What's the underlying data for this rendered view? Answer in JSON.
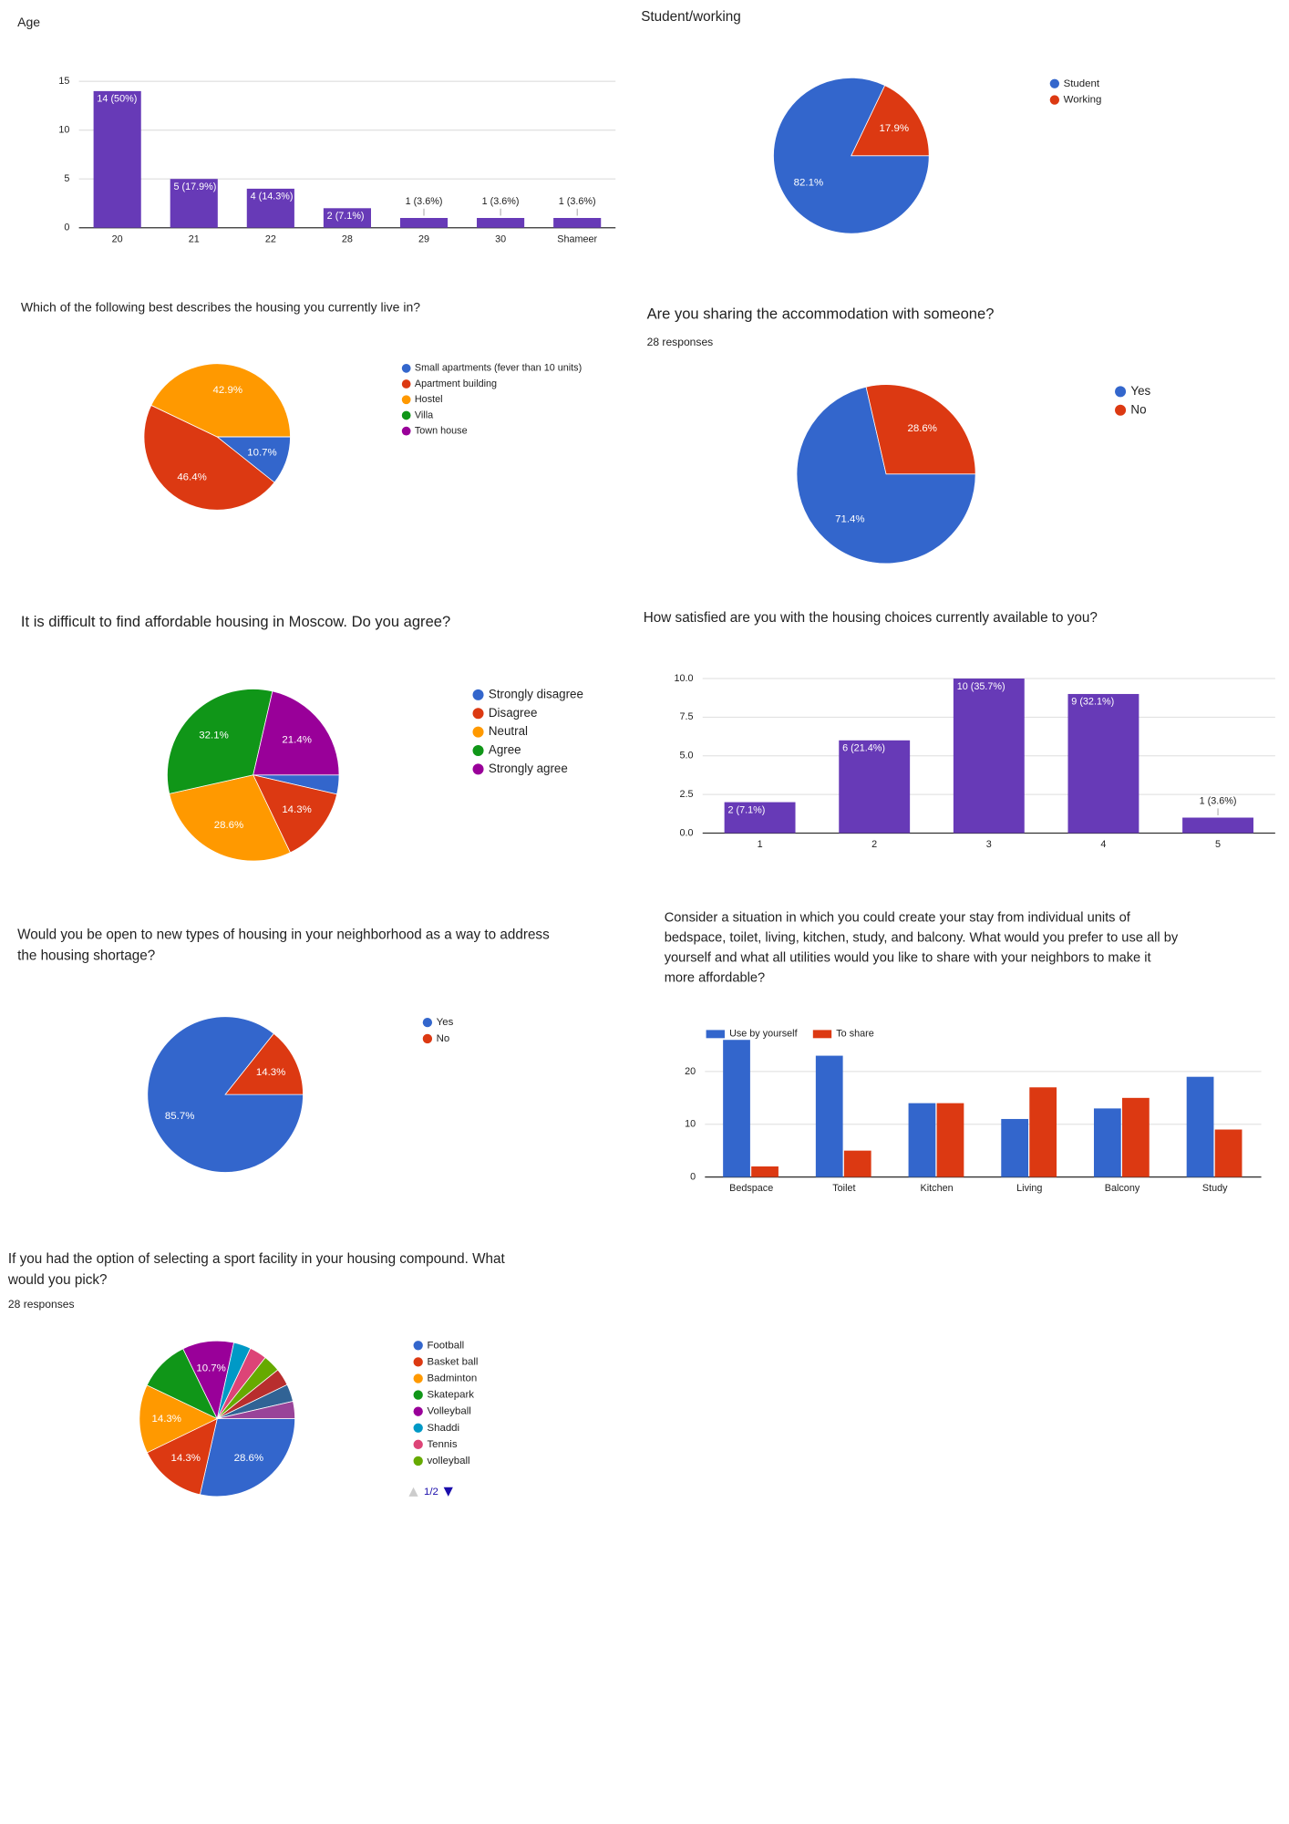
{
  "chart_data": [
    {
      "type": "bar",
      "title": "Age",
      "categories": [
        "20",
        "21",
        "22",
        "28",
        "29",
        "30",
        "Shameer"
      ],
      "values": [
        14,
        5,
        4,
        2,
        1,
        1,
        1
      ],
      "value_labels": [
        "14 (50%)",
        "5 (17.9%)",
        "4 (14.3%)",
        "2 (7.1%)",
        "1 (3.6%)",
        "1 (3.6%)",
        "1 (3.6%)"
      ],
      "color": "#673ab7",
      "ylim": [
        0,
        15
      ],
      "yticks": [
        0,
        5,
        10,
        15
      ],
      "grid": true
    },
    {
      "type": "pie",
      "title": "Student/working",
      "categories": [
        "Student",
        "Working"
      ],
      "values": [
        82.1,
        17.9
      ],
      "value_labels": [
        "82.1%",
        "17.9%"
      ],
      "colors": [
        "#3366cc",
        "#dc3912"
      ]
    },
    {
      "type": "pie",
      "title": "Which of the following best describes the housing you currently live in?",
      "categories": [
        "Small apartments (fever than 10 units)",
        "Apartment building",
        "Hostel",
        "Villa",
        "Town house"
      ],
      "values": [
        10.7,
        46.4,
        42.9,
        0,
        0
      ],
      "value_labels": [
        "10.7%",
        "46.4%",
        "42.9%",
        null,
        null
      ],
      "colors": [
        "#3366cc",
        "#dc3912",
        "#ff9900",
        "#109618",
        "#990099"
      ]
    },
    {
      "type": "pie",
      "title": "Are you sharing the accommodation with someone?",
      "subtitle": "28 responses",
      "categories": [
        "Yes",
        "No"
      ],
      "values": [
        71.4,
        28.6
      ],
      "value_labels": [
        "71.4%",
        "28.6%"
      ],
      "colors": [
        "#3366cc",
        "#dc3912"
      ]
    },
    {
      "type": "pie",
      "title": "It is difficult to find affordable housing in Moscow. Do you agree?",
      "categories": [
        "Strongly disagree",
        "Disagree",
        "Neutral",
        "Agree",
        "Strongly agree"
      ],
      "values": [
        3.6,
        14.3,
        28.6,
        32.1,
        21.4
      ],
      "value_labels": [
        null,
        "14.3%",
        "28.6%",
        "32.1%",
        "21.4%"
      ],
      "colors": [
        "#3366cc",
        "#dc3912",
        "#ff9900",
        "#109618",
        "#990099"
      ]
    },
    {
      "type": "bar",
      "title": "How satisfied are you with the housing choices currently available to you?",
      "categories": [
        "1",
        "2",
        "3",
        "4",
        "5"
      ],
      "values": [
        2,
        6,
        10,
        9,
        1
      ],
      "value_labels": [
        "2 (7.1%)",
        "6 (21.4%)",
        "10 (35.7%)",
        "9 (32.1%)",
        "1 (3.6%)"
      ],
      "color": "#673ab7",
      "ylim": [
        0,
        10
      ],
      "yticks": [
        {
          "value": 0,
          "label": "0.0"
        },
        2.5,
        {
          "value": 5,
          "label": "5.0"
        },
        7.5,
        {
          "value": 10,
          "label": "10.0"
        }
      ],
      "grid": true
    },
    {
      "type": "pie",
      "title": [
        "Would you be open to new types of housing in your neighborhood as a way to address",
        "the housing shortage?"
      ],
      "categories": [
        "Yes",
        "No"
      ],
      "values": [
        85.7,
        14.3
      ],
      "value_labels": [
        "85.7%",
        "14.3%"
      ],
      "colors": [
        "#3366cc",
        "#dc3912"
      ]
    },
    {
      "type": "bar",
      "title": [
        "Consider a situation in which you could create your stay from individual units of",
        "bedspace, toilet, living, kitchen, study, and balcony. What would you prefer to use all by",
        "yourself and what all utilities would you like to share with your neighbors to make it",
        "more affordable?"
      ],
      "categories": [
        "Bedspace",
        "Toilet",
        "Kitchen",
        "Living",
        "Balcony",
        "Study"
      ],
      "series": [
        {
          "name": "Use by yourself",
          "color": "#3366cc",
          "values": [
            26,
            23,
            14,
            11,
            13,
            19
          ]
        },
        {
          "name": "To share",
          "color": "#dc3912",
          "values": [
            2,
            5,
            14,
            17,
            15,
            9
          ]
        }
      ],
      "ylim": [
        0,
        26
      ],
      "yticks": [
        0,
        10,
        20
      ],
      "grid": true,
      "legend": "top"
    },
    {
      "type": "pie",
      "title": [
        "If you had the option of selecting a sport facility in your housing compound. What",
        "would you pick?"
      ],
      "subtitle": "28 responses",
      "categories": [
        "Football",
        "Basket ball",
        "Badminton",
        "Skatepark",
        "Volleyball",
        "Shaddi",
        "Tennis",
        "volleyball",
        null,
        null,
        null
      ],
      "values": [
        28.6,
        14.3,
        14.3,
        10.7,
        10.7,
        3.6,
        3.6,
        3.6,
        3.6,
        3.6,
        3.6
      ],
      "value_labels": [
        "28.6%",
        "14.3%",
        "14.3%",
        null,
        "10.7%",
        null,
        null,
        null,
        null,
        null,
        null
      ],
      "colors": [
        "#3366cc",
        "#dc3912",
        "#ff9900",
        "#109618",
        "#990099",
        "#0099c6",
        "#dd4477",
        "#66aa00",
        "#b82e2e",
        "#316395",
        "#994499"
      ],
      "pager": "1/2"
    }
  ]
}
